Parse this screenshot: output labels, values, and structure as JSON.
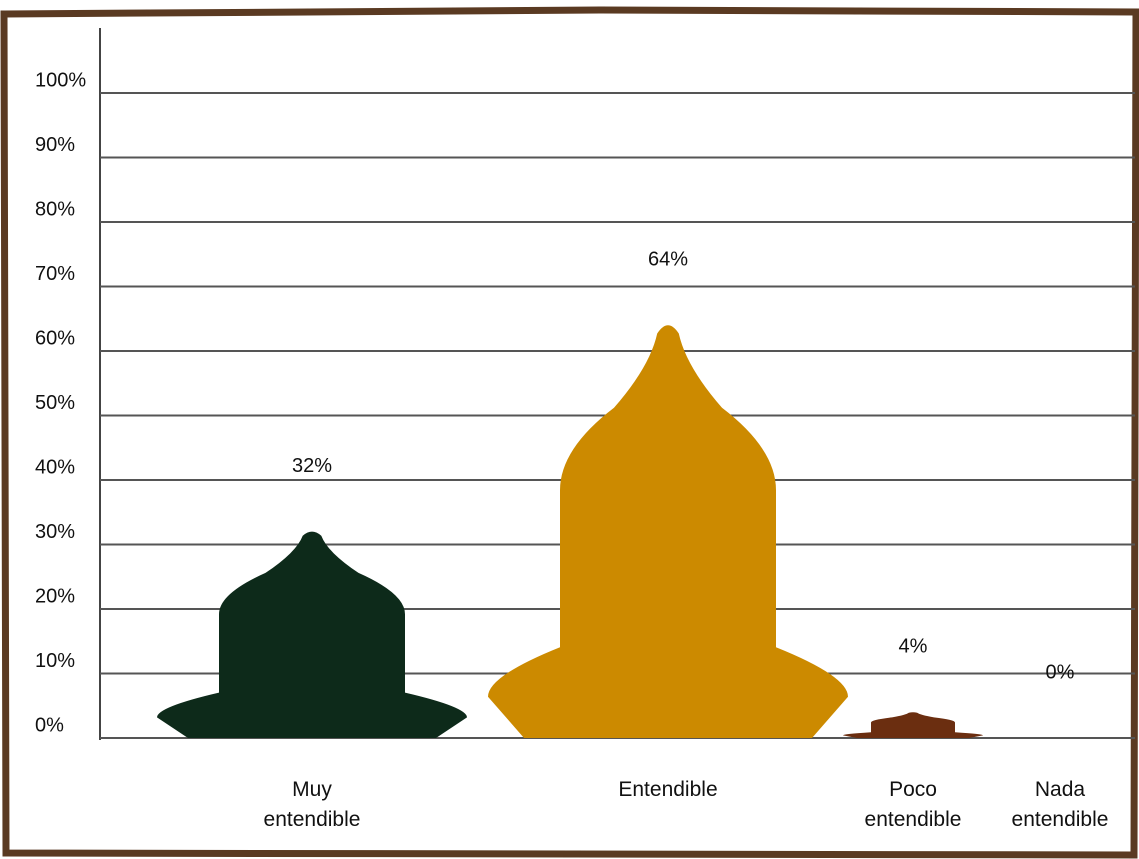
{
  "chart_data": {
    "type": "bar",
    "categories": [
      "Muy entendible",
      "Entendible",
      "Poco entendible",
      "Nada entendible"
    ],
    "values": [
      32,
      64,
      4,
      0
    ],
    "value_labels": [
      "32%",
      "64%",
      "4%",
      "0%"
    ],
    "colors": [
      "#0d2a1a",
      "#cc8a00",
      "#6b2e10",
      "#6b2e10"
    ],
    "ylim": [
      0,
      100
    ],
    "yticks": [
      {
        "value": 0,
        "label": "0%"
      },
      {
        "value": 10,
        "label": "10%"
      },
      {
        "value": 20,
        "label": "20%"
      },
      {
        "value": 30,
        "label": "30%"
      },
      {
        "value": 40,
        "label": "40%"
      },
      {
        "value": 50,
        "label": "50%"
      },
      {
        "value": 60,
        "label": "60%"
      },
      {
        "value": 70,
        "label": "70%"
      },
      {
        "value": 80,
        "label": "80%"
      },
      {
        "value": 90,
        "label": "90%"
      },
      {
        "value": 100,
        "label": "100%"
      }
    ],
    "grid": true
  }
}
